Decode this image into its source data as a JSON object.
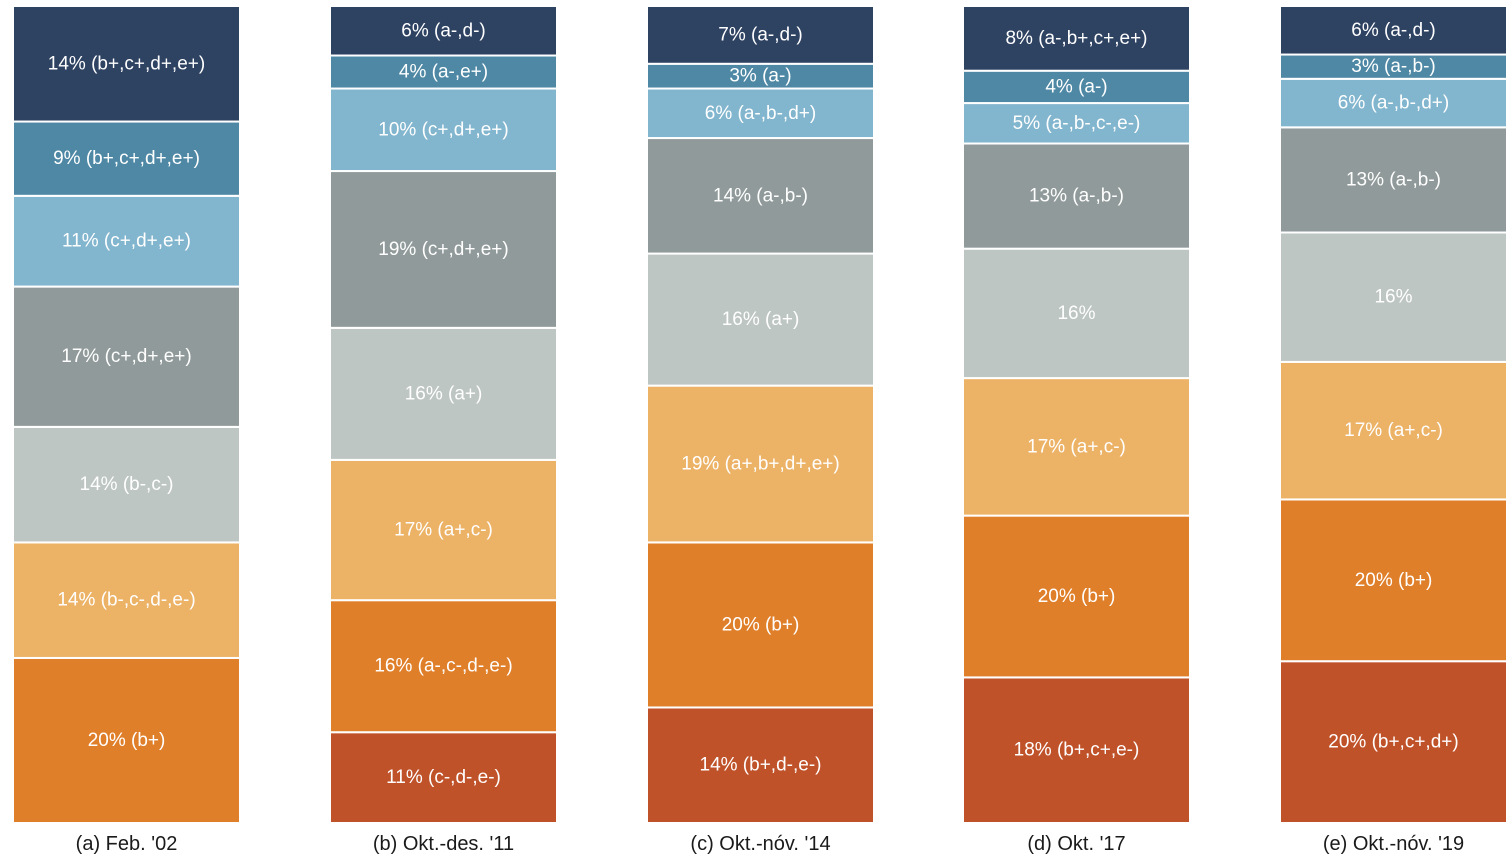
{
  "colors": {
    "s1": "#C0522A",
    "s2": "#E07F2A",
    "s3": "#ECB266",
    "s4": "#BEC6C4",
    "s5": "#919A9A",
    "s6": "#82B5CE",
    "s7": "#4E88A4",
    "s8": "#2E4262"
  },
  "chart_data": {
    "type": "bar",
    "stacked": true,
    "normalized_percent": true,
    "columns": [
      {
        "label": "(a) Feb. '02",
        "segments": [
          {
            "series": "s2",
            "value": 20,
            "text": "20% (b+)"
          },
          {
            "series": "s3",
            "value": 14,
            "text": "14% (b-,c-,d-,e-)"
          },
          {
            "series": "s4",
            "value": 14,
            "text": "14% (b-,c-)"
          },
          {
            "series": "s5",
            "value": 17,
            "text": "17% (c+,d+,e+)"
          },
          {
            "series": "s6",
            "value": 11,
            "text": "11% (c+,d+,e+)"
          },
          {
            "series": "s7",
            "value": 9,
            "text": "9% (b+,c+,d+,e+)"
          },
          {
            "series": "s8",
            "value": 14,
            "text": "14% (b+,c+,d+,e+)"
          }
        ]
      },
      {
        "label": "(b) Okt.-des. '11",
        "segments": [
          {
            "series": "s1",
            "value": 11,
            "text": "11% (c-,d-,e-)"
          },
          {
            "series": "s2",
            "value": 16,
            "text": "16% (a-,c-,d-,e-)"
          },
          {
            "series": "s3",
            "value": 17,
            "text": "17% (a+,c-)"
          },
          {
            "series": "s4",
            "value": 16,
            "text": "16% (a+)"
          },
          {
            "series": "s5",
            "value": 19,
            "text": "19% (c+,d+,e+)"
          },
          {
            "series": "s6",
            "value": 10,
            "text": "10% (c+,d+,e+)"
          },
          {
            "series": "s7",
            "value": 4,
            "text": "4% (a-,e+)"
          },
          {
            "series": "s8",
            "value": 6,
            "text": "6% (a-,d-)"
          }
        ]
      },
      {
        "label": "(c) Okt.-nóv. '14",
        "segments": [
          {
            "series": "s1",
            "value": 14,
            "text": "14% (b+,d-,e-)"
          },
          {
            "series": "s2",
            "value": 20,
            "text": "20% (b+)"
          },
          {
            "series": "s3",
            "value": 19,
            "text": "19% (a+,b+,d+,e+)"
          },
          {
            "series": "s4",
            "value": 16,
            "text": "16% (a+)"
          },
          {
            "series": "s5",
            "value": 14,
            "text": "14% (a-,b-)"
          },
          {
            "series": "s6",
            "value": 6,
            "text": "6% (a-,b-,d+)"
          },
          {
            "series": "s7",
            "value": 3,
            "text": "3% (a-)"
          },
          {
            "series": "s8",
            "value": 7,
            "text": "7% (a-,d-)"
          }
        ]
      },
      {
        "label": "(d) Okt. '17",
        "segments": [
          {
            "series": "s1",
            "value": 18,
            "text": "18% (b+,c+,e-)"
          },
          {
            "series": "s2",
            "value": 20,
            "text": "20% (b+)"
          },
          {
            "series": "s3",
            "value": 17,
            "text": "17% (a+,c-)"
          },
          {
            "series": "s4",
            "value": 16,
            "text": "16%"
          },
          {
            "series": "s5",
            "value": 13,
            "text": "13% (a-,b-)"
          },
          {
            "series": "s6",
            "value": 5,
            "text": "5% (a-,b-,c-,e-)"
          },
          {
            "series": "s7",
            "value": 4,
            "text": "4% (a-)"
          },
          {
            "series": "s8",
            "value": 8,
            "text": "8% (a-,b+,c+,e+)"
          }
        ]
      },
      {
        "label": "(e) Okt.-nóv. '19",
        "segments": [
          {
            "series": "s1",
            "value": 20,
            "text": "20% (b+,c+,d+)"
          },
          {
            "series": "s2",
            "value": 20,
            "text": "20% (b+)"
          },
          {
            "series": "s3",
            "value": 17,
            "text": "17% (a+,c-)"
          },
          {
            "series": "s4",
            "value": 16,
            "text": "16%"
          },
          {
            "series": "s5",
            "value": 13,
            "text": "13% (a-,b-)"
          },
          {
            "series": "s6",
            "value": 6,
            "text": "6% (a-,b-,d+)"
          },
          {
            "series": "s7",
            "value": 3,
            "text": "3% (a-,b-)"
          },
          {
            "series": "s8",
            "value": 6,
            "text": "6% (a-,d-)"
          }
        ]
      }
    ]
  }
}
